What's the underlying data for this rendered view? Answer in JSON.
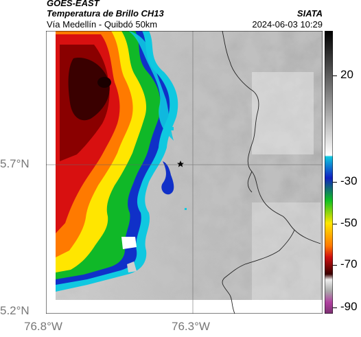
{
  "header": {
    "source": "GOES-EAST",
    "product": "Temperatura de Brillo CH13",
    "route": "Vía Medellín - Quibdó 50km",
    "org": "SIATA",
    "datetime": "2024-06-03 10:29"
  },
  "axes": {
    "y_ticks": [
      "5.7°N",
      "5.2°N"
    ],
    "x_ticks": [
      "76.8°W",
      "76.3°W"
    ]
  },
  "colorbar": {
    "labels": [
      "20",
      "-30",
      "-50",
      "-70",
      "-90"
    ]
  },
  "colors": {
    "deep_red": "#3a0000",
    "red": "#d01010",
    "orange": "#ff7a00",
    "yellow": "#ffe600",
    "green": "#10c020",
    "blue": "#1020c0",
    "cyan": "#10c8e0",
    "magenta": "#b040a0"
  },
  "map": {
    "marker": "star"
  }
}
